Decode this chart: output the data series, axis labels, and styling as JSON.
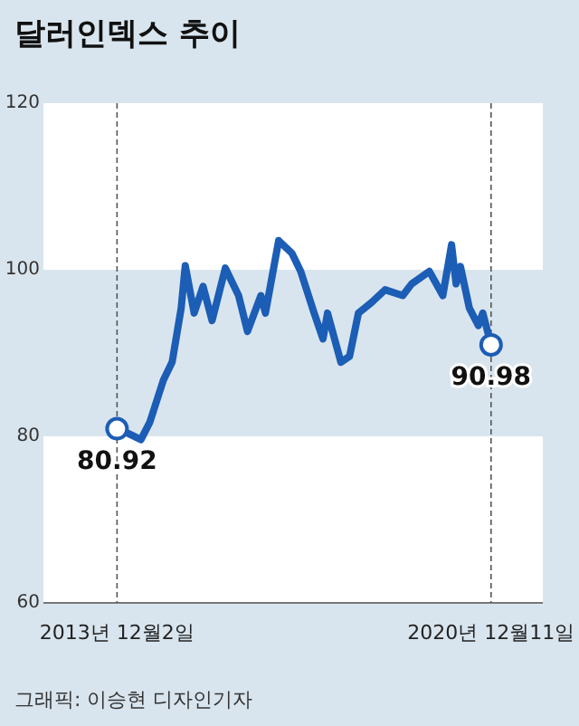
{
  "chart_data": {
    "type": "line",
    "title": "달러인덱스 추이",
    "xlim": [
      "2012-07-15",
      "2021-12-01"
    ],
    "xticks": [
      {
        "value": "2013-12-02",
        "label": "2013년 12월2일"
      },
      {
        "value": "2020-12-11",
        "label": "2020년 12월11일"
      }
    ],
    "ylim": [
      60,
      120
    ],
    "yticks": [
      60,
      80,
      100,
      120
    ],
    "grid": "x",
    "bands": [
      {
        "axis": "y",
        "from": 60,
        "to": 80,
        "color": "#ffffff"
      },
      {
        "axis": "y",
        "from": 100,
        "to": 120,
        "color": "#ffffff"
      }
    ],
    "series": [
      {
        "color": "#1c5db5",
        "marker": "none",
        "x": [
          "2013-12-02",
          "2014-05-15",
          "2014-07-15",
          "2014-10-15",
          "2014-12-15",
          "2015-02-15",
          "2015-03-15",
          "2015-05-15",
          "2015-07-15",
          "2015-09-15",
          "2015-12-15",
          "2016-03-15",
          "2016-05-15",
          "2016-08-15",
          "2016-09-15",
          "2016-12-15",
          "2017-03-15",
          "2017-05-15",
          "2017-08-15",
          "2017-10-15",
          "2017-11-15",
          "2018-02-15",
          "2018-04-15",
          "2018-06-15",
          "2018-09-15",
          "2018-12-15",
          "2019-04-15",
          "2019-06-15",
          "2019-10-15",
          "2020-01-15",
          "2020-03-15",
          "2020-04-15",
          "2020-05-15",
          "2020-07-15",
          "2020-09-15",
          "2020-10-15",
          "2020-12-11"
        ],
        "values": [
          81,
          79.6,
          81.7,
          86.7,
          88.9,
          95.4,
          100.5,
          94.8,
          98,
          93.9,
          100.2,
          96.9,
          92.6,
          96.9,
          94.8,
          103.5,
          102,
          99.8,
          94.8,
          91.7,
          94.8,
          88.9,
          89.6,
          94.8,
          96.1,
          97.6,
          96.9,
          98.3,
          99.8,
          96.9,
          103,
          98.3,
          100.4,
          95.4,
          93.3,
          94.8,
          91
        ]
      },
      {
        "type": "scatter",
        "color": "#1c5db5",
        "marker": "circle",
        "x": [
          "2013-12-02",
          "2020-12-11"
        ],
        "values": [
          80.92,
          90.98
        ],
        "value_labels": [
          "80.92",
          "90.98"
        ]
      }
    ],
    "annotations": [
      "그래픽: 이승현 디자인기자"
    ]
  }
}
